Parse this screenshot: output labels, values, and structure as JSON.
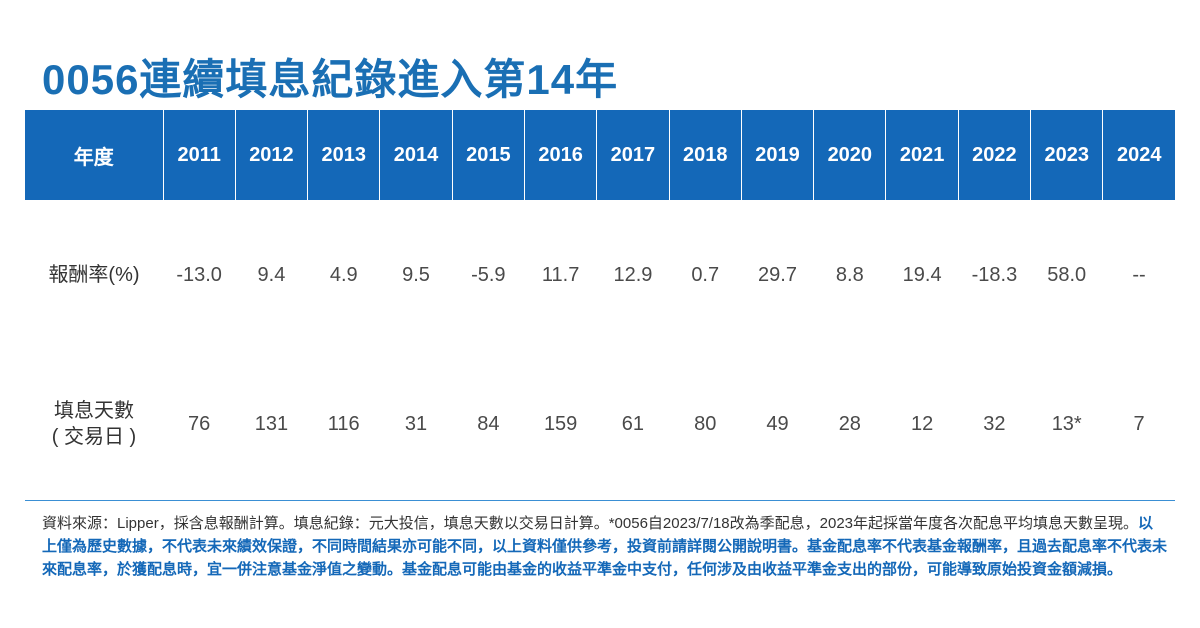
{
  "title": "0056連續填息紀錄進入第14年",
  "table": {
    "header_label": "年度",
    "years": [
      "2011",
      "2012",
      "2013",
      "2014",
      "2015",
      "2016",
      "2017",
      "2018",
      "2019",
      "2020",
      "2021",
      "2022",
      "2023",
      "2024"
    ],
    "rows": [
      {
        "label": "報酬率(%)",
        "values": [
          "-13.0",
          "9.4",
          "4.9",
          "9.5",
          "-5.9",
          "11.7",
          "12.9",
          "0.7",
          "29.7",
          "8.8",
          "19.4",
          "-18.3",
          "58.0",
          "--"
        ]
      },
      {
        "label_line1": "填息天數",
        "label_line2": "( 交易日 )",
        "values": [
          "76",
          "131",
          "116",
          "31",
          "84",
          "159",
          "61",
          "80",
          "49",
          "28",
          "12",
          "32",
          "13*",
          "7"
        ]
      }
    ]
  },
  "footnote": {
    "plain": "資料來源：Lipper，採含息報酬計算。填息紀錄：元大投信，填息天數以交易日計算。*0056自2023/7/18改為季配息，2023年起採當年度各次配息平均填息天數呈現。",
    "highlight": "以上僅為歷史數據，不代表未來績效保證，不同時間結果亦可能不同，以上資料僅供參考，投資前請詳閱公開說明書。基金配息率不代表基金報酬率，且過去配息率不代表未來配息率，於獲配息時，宜一併注意基金淨值之變動。基金配息可能由基金的收益平準金中支付，任何涉及由收益平準金支出的部份，可能導致原始投資金額減損。"
  },
  "colors": {
    "title": "#1a6fb4",
    "header_bg": "#1468b8",
    "header_text": "#ffffff",
    "divider": "#3a8fd4",
    "footnote_highlight": "#1468b8"
  }
}
